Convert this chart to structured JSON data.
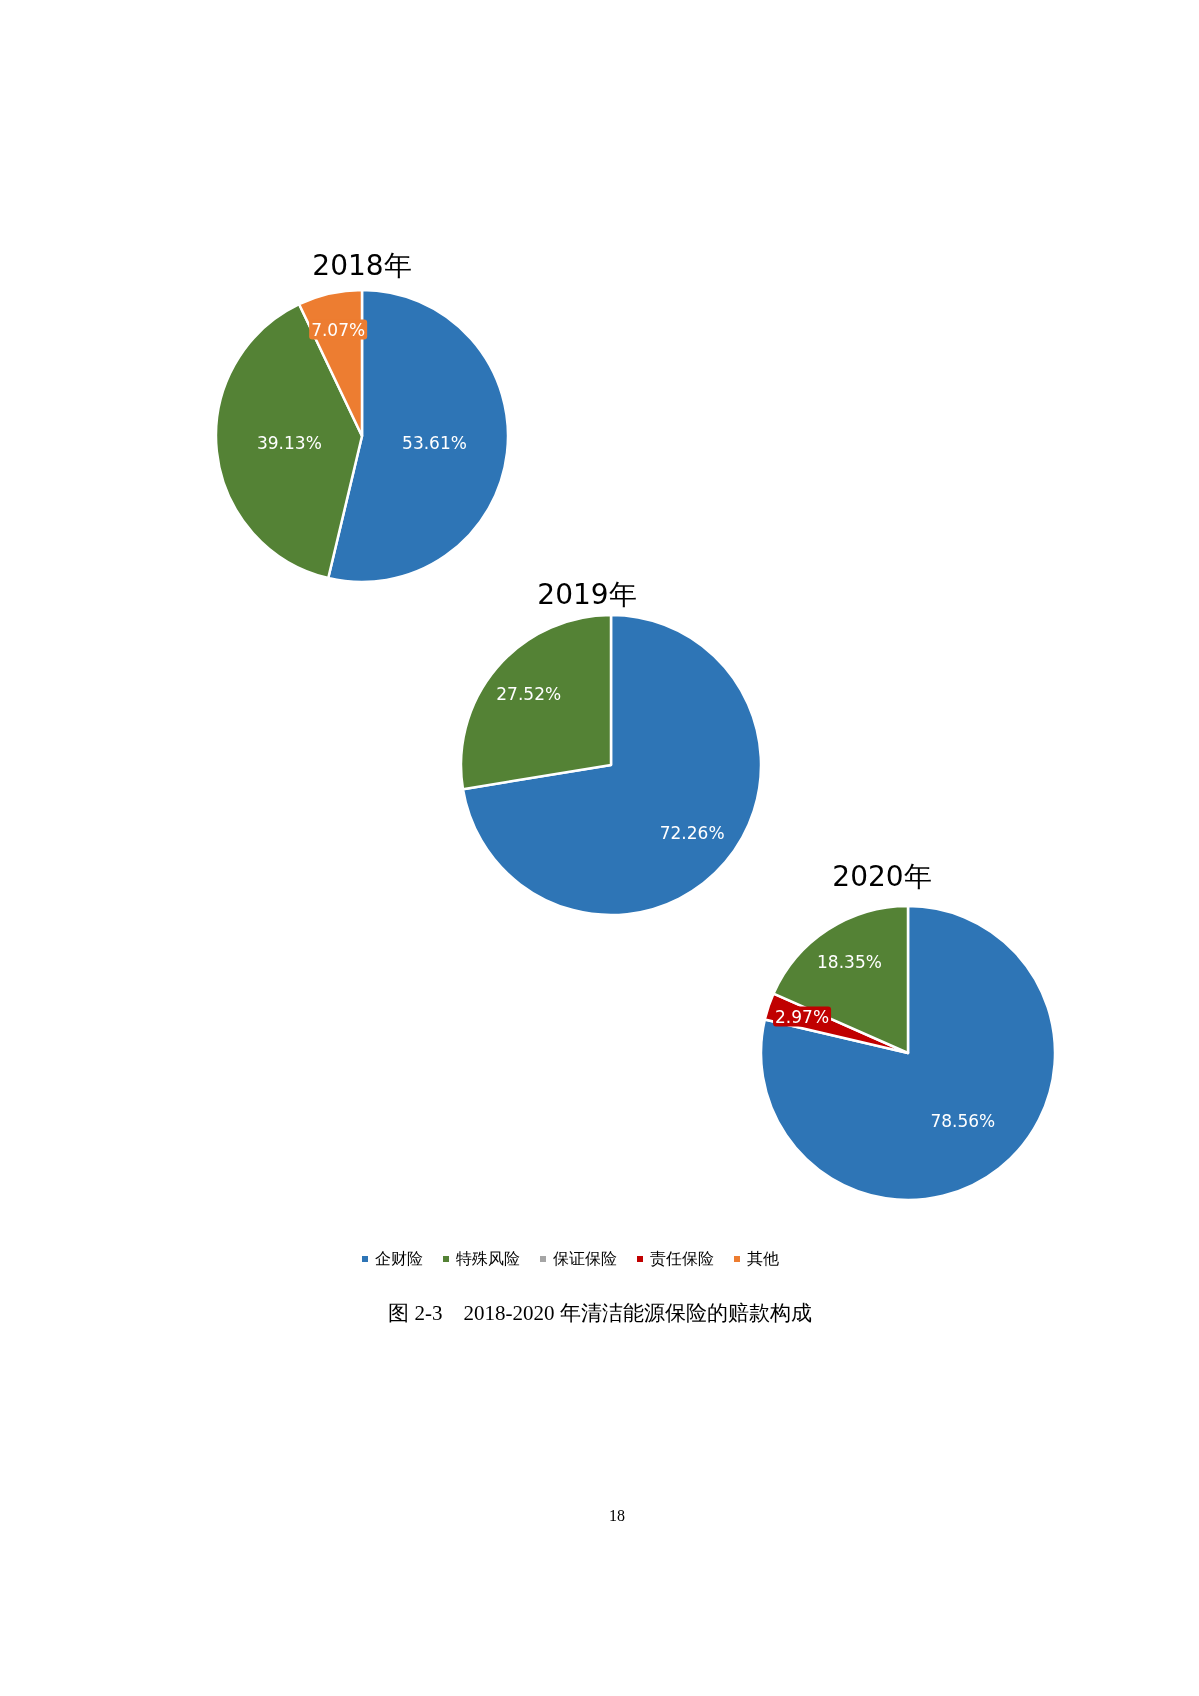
{
  "chart_data": [
    {
      "type": "pie",
      "title": "2018年",
      "categories": [
        "企财险",
        "特殊风险",
        "保证保险",
        "责任保险",
        "其他"
      ],
      "values": [
        53.61,
        39.13,
        null,
        null,
        7.07
      ],
      "colors": [
        "#2e75b6",
        "#548235",
        "#a5a5a5",
        "#c00000",
        "#ed7d31"
      ],
      "value_labels": [
        "53.61%",
        "39.13%",
        null,
        null,
        "7.07%"
      ],
      "legend": "bottom"
    },
    {
      "type": "pie",
      "title": "2019年",
      "categories": [
        null,
        null
      ],
      "values": [
        72.26,
        27.52
      ],
      "colors": [
        "#2e75b6",
        "#548235"
      ],
      "value_labels": [
        "72.26%",
        "27.52%"
      ]
    },
    {
      "type": "pie",
      "title": "2020年",
      "categories": [
        null,
        null,
        null
      ],
      "values": [
        78.56,
        2.97,
        18.35
      ],
      "colors": [
        "#2e75b6",
        "#c00000",
        "#548235"
      ],
      "value_labels": [
        "78.56%",
        "2.97%",
        "18.35%"
      ],
      "annotations": [
        "图 2-3　2018-2020 年清洁能源保险的赔款构成",
        "18"
      ]
    }
  ]
}
